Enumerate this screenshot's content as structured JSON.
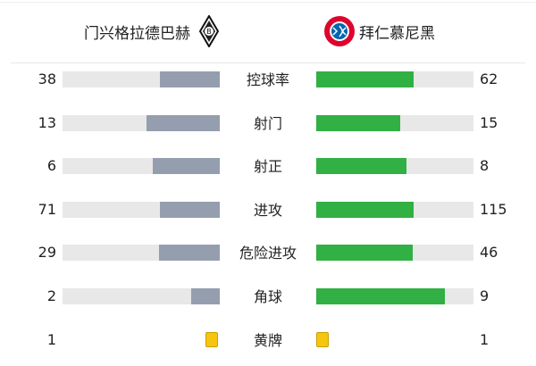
{
  "home_team": {
    "name": "门兴格拉德巴赫",
    "logo": "gladbach-crest"
  },
  "away_team": {
    "name": "拜仁慕尼黑",
    "logo": "bayern-crest"
  },
  "colors": {
    "home_bar": "#959eae",
    "away_bar": "#31b044",
    "track": "#e8e8e8",
    "card": "#f6c50f"
  },
  "stats": [
    {
      "label": "控球率",
      "home": "38",
      "away": "62",
      "type": "bar"
    },
    {
      "label": "射门",
      "home": "13",
      "away": "15",
      "type": "bar"
    },
    {
      "label": "射正",
      "home": "6",
      "away": "8",
      "type": "bar"
    },
    {
      "label": "进攻",
      "home": "71",
      "away": "115",
      "type": "bar"
    },
    {
      "label": "危险进攻",
      "home": "29",
      "away": "46",
      "type": "bar"
    },
    {
      "label": "角球",
      "home": "2",
      "away": "9",
      "type": "bar"
    },
    {
      "label": "黄牌",
      "home": "1",
      "away": "1",
      "type": "card"
    }
  ]
}
